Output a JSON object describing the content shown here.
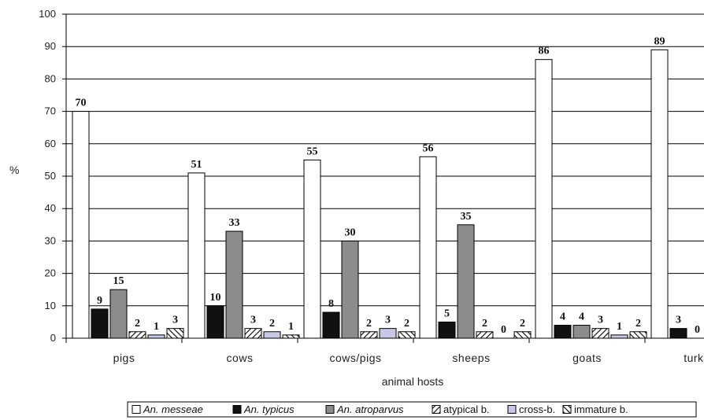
{
  "chart_data": {
    "type": "bar",
    "xlabel": "animal hosts",
    "ylabel": "%",
    "ylim": [
      0,
      100
    ],
    "yticks": [
      0,
      10,
      20,
      30,
      40,
      50,
      60,
      70,
      80,
      90,
      100
    ],
    "grid": true,
    "legend_position": "bottom-right",
    "categories": [
      "pigs",
      "cows",
      "cows/pigs",
      "sheeps",
      "goats",
      "turkeys"
    ],
    "series": [
      {
        "name": "An. messeae",
        "italic": true,
        "pattern": "white",
        "values": [
          70,
          51,
          55,
          56,
          86,
          89
        ]
      },
      {
        "name": "An. typicus",
        "italic": true,
        "pattern": "black",
        "values": [
          9,
          10,
          8,
          5,
          4,
          3
        ]
      },
      {
        "name": "An. atroparvus",
        "italic": true,
        "pattern": "gray",
        "values": [
          15,
          33,
          30,
          35,
          4,
          0
        ]
      },
      {
        "name": "atypical b.",
        "italic": false,
        "pattern": "forward-hatch",
        "values": [
          2,
          3,
          2,
          2,
          3,
          null
        ]
      },
      {
        "name": "cross-b.",
        "italic": false,
        "pattern": "lavender",
        "values": [
          1,
          2,
          3,
          0,
          1,
          null
        ]
      },
      {
        "name": "immature b.",
        "italic": false,
        "pattern": "back-hatch",
        "values": [
          3,
          1,
          2,
          2,
          2,
          null
        ]
      }
    ],
    "data_labels": [
      [
        "70",
        "9",
        "15",
        "2",
        "1",
        "3"
      ],
      [
        "51",
        "10",
        "33",
        "3",
        "2",
        "1"
      ],
      [
        "55",
        "8",
        "30",
        "2",
        "3",
        "2"
      ],
      [
        "56",
        "5",
        "35",
        "2",
        "0",
        "2"
      ],
      [
        "86",
        "4",
        "4",
        "3",
        "1",
        "2"
      ],
      [
        "89",
        "3",
        "0",
        "",
        "",
        ""
      ]
    ],
    "colors": {
      "white": "#ffffff",
      "black": "#111111",
      "gray": "#8c8c8c",
      "lavender": "#c8c8e6",
      "outline": "#000000",
      "gridline": "#000000"
    }
  }
}
